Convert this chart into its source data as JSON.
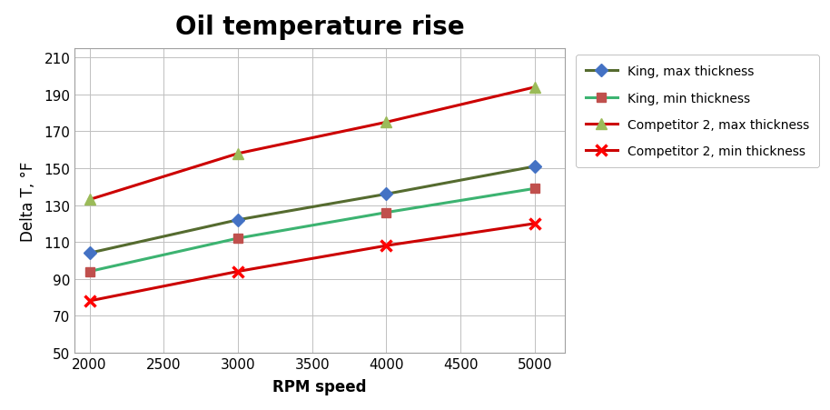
{
  "title": "Oil temperature rise",
  "xlabel": "RPM speed",
  "ylabel": "Delta T, °F",
  "x": [
    2000,
    3000,
    4000,
    5000
  ],
  "king_max": [
    104,
    122,
    136,
    151
  ],
  "king_min": [
    94,
    112,
    126,
    139
  ],
  "comp2_max": [
    133,
    158,
    175,
    194
  ],
  "comp2_min": [
    78,
    94,
    108,
    120
  ],
  "king_max_line_color": "#556B2F",
  "king_min_line_color": "#3CB371",
  "comp2_max_line_color": "#CC0000",
  "comp2_min_line_color": "#CC0000",
  "king_max_marker_fc": "#4472C4",
  "king_max_marker_ec": "#4472C4",
  "king_min_marker_fc": "#C0504D",
  "king_min_marker_ec": "#C0504D",
  "comp2_max_marker_fc": "#9BBB59",
  "comp2_max_marker_ec": "#9BBB59",
  "comp2_min_marker_fc": "#FF0000",
  "comp2_min_marker_ec": "#FF0000",
  "ylim": [
    50,
    215
  ],
  "yticks": [
    50,
    70,
    90,
    110,
    130,
    150,
    170,
    190,
    210
  ],
  "xticks": [
    2000,
    2500,
    3000,
    3500,
    4000,
    4500,
    5000
  ],
  "xlim": [
    1900,
    5200
  ],
  "legend_labels": [
    "King, max thickness",
    "King, min thickness",
    "Competitor 2, max thickness",
    "Competitor 2, min thickness"
  ],
  "title_fontsize": 20,
  "axis_label_fontsize": 12,
  "tick_fontsize": 11,
  "legend_fontsize": 10
}
